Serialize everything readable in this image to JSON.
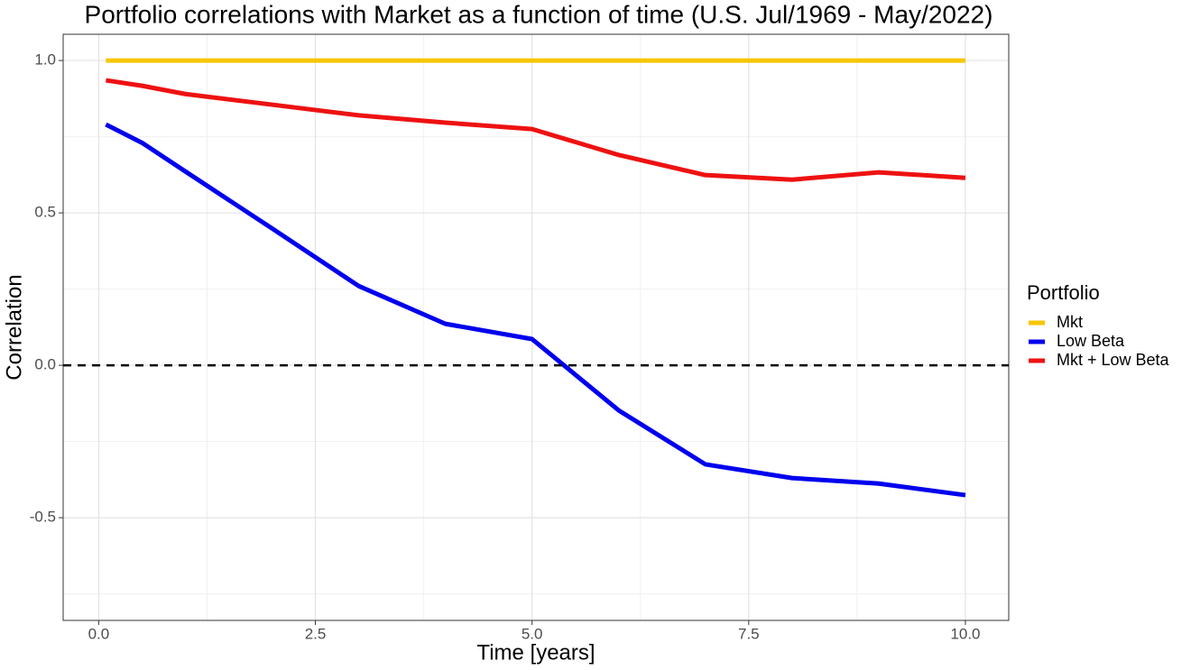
{
  "chart_data": {
    "type": "line",
    "title": "Portfolio correlations with Market as a function of time (U.S. Jul/1969 - May/2022)",
    "x_label": "Time [years]",
    "y_label": "Correlation",
    "x": [
      0.083,
      0.5,
      1,
      2,
      3,
      4,
      5,
      6,
      7,
      8,
      9,
      10
    ],
    "series": [
      {
        "name": "Mkt",
        "color": "#f7c600",
        "values": [
          1,
          1,
          1,
          1,
          1,
          1,
          1,
          1,
          1,
          1,
          1,
          1
        ]
      },
      {
        "name": "Low Beta",
        "color": "#0000ee",
        "values": [
          0.79,
          0.73,
          0.636,
          0.449,
          0.26,
          0.136,
          0.086,
          -0.148,
          -0.325,
          -0.37,
          -0.388,
          -0.426
        ]
      },
      {
        "name": "Mkt + Low Beta",
        "color": "#ee1111",
        "values": [
          0.935,
          0.917,
          0.89,
          0.855,
          0.82,
          0.796,
          0.775,
          0.69,
          0.624,
          0.609,
          0.633,
          0.615
        ]
      }
    ],
    "legend_title": "Portfolio",
    "legend": "right",
    "xlim": [
      -0.41,
      10.5
    ],
    "ylim": [
      -0.837,
      1.086
    ],
    "xticks": [
      {
        "value": 0,
        "label": "0.0"
      },
      2.5,
      {
        "value": 5,
        "label": "5.0"
      },
      7.5,
      {
        "value": 10,
        "label": "10.0"
      }
    ],
    "yticks": [
      -0.5,
      {
        "value": 0,
        "label": "0.0"
      },
      0.5,
      {
        "value": 1,
        "label": "1.0"
      }
    ],
    "grid": true,
    "minor_grid": true,
    "hline": 0
  }
}
